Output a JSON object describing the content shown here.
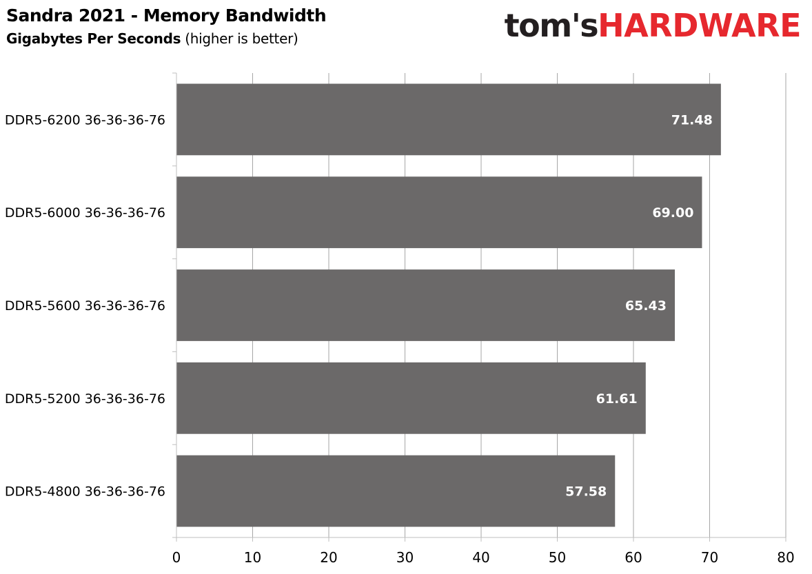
{
  "chart_data": {
    "type": "bar",
    "orientation": "horizontal",
    "title": "Sandra 2021 - Memory Bandwidth",
    "subtitle_bold": "Gigabytes Per Seconds",
    "subtitle_rest": " (higher is better)",
    "categories": [
      "DDR5-6200 36-36-36-76",
      "DDR5-6000 36-36-36-76",
      "DDR5-5600 36-36-36-76",
      "DDR5-5200 36-36-36-76",
      "DDR5-4800 36-36-36-76"
    ],
    "values": [
      71.48,
      69.0,
      65.43,
      61.61,
      57.58
    ],
    "value_labels": [
      "71.48",
      "69.00",
      "65.43",
      "61.61",
      "57.58"
    ],
    "xlim": [
      0,
      80
    ],
    "xticks": [
      0,
      10,
      20,
      30,
      40,
      50,
      60,
      70,
      80
    ],
    "grid": true,
    "bar_color": "#6b6969",
    "grid_color": "#a6a6a6",
    "label_color": "#ffffff"
  },
  "logo": {
    "part1": "tom's",
    "part2": "HARDWARE",
    "color1": "#231f20",
    "color2": "#e6282e"
  }
}
